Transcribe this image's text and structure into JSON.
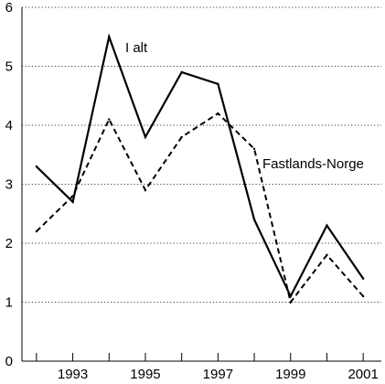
{
  "chart_data": {
    "type": "line",
    "title": "",
    "xlabel": "",
    "ylabel": "",
    "x": [
      1992,
      1993,
      1994,
      1995,
      1996,
      1997,
      1998,
      1999,
      2000,
      2001
    ],
    "x_tick_labels": [
      "1993",
      "1995",
      "1997",
      "1999",
      "2001"
    ],
    "x_tick_values": [
      1993,
      1995,
      1997,
      1999,
      2001
    ],
    "y_tick_labels": [
      "0",
      "1",
      "2",
      "3",
      "4",
      "5",
      "6"
    ],
    "y_tick_values": [
      0,
      1,
      2,
      3,
      4,
      5,
      6
    ],
    "xlim": [
      1991.6,
      2001.5
    ],
    "ylim": [
      0,
      6
    ],
    "grid": "horizontal dotted",
    "legend": "inline labels",
    "series": [
      {
        "name": "I alt",
        "style": "solid",
        "color": "#000000",
        "values": [
          3.3,
          2.7,
          5.5,
          3.8,
          4.9,
          4.7,
          2.4,
          1.1,
          2.3,
          1.4
        ]
      },
      {
        "name": "Fastlands-Norge",
        "style": "dashed",
        "color": "#000000",
        "values": [
          2.2,
          2.8,
          4.1,
          2.9,
          3.8,
          4.2,
          3.6,
          1.0,
          1.8,
          1.1
        ]
      }
    ]
  }
}
